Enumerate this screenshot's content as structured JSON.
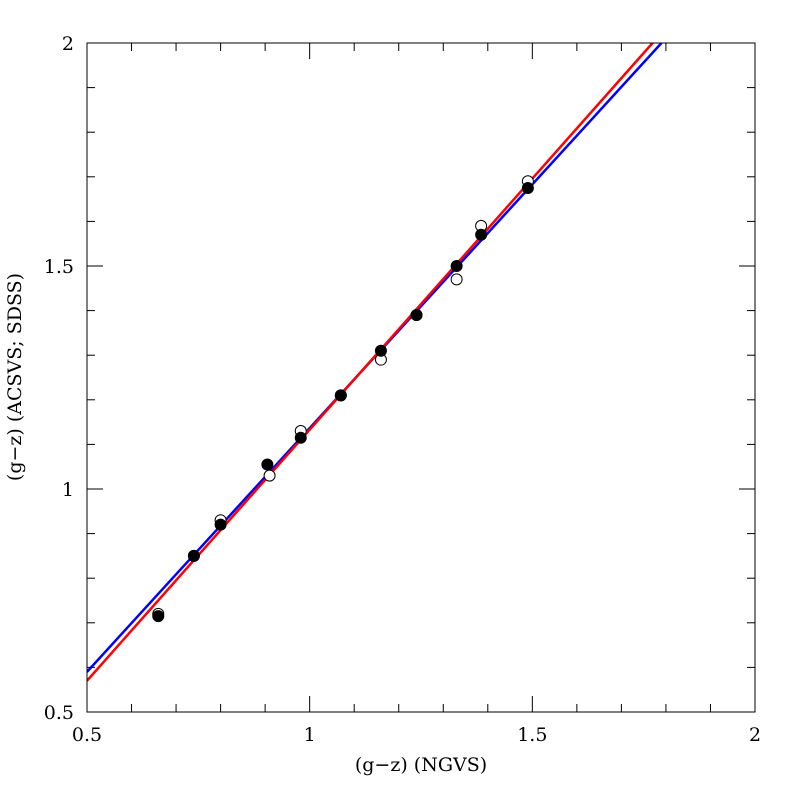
{
  "chart_data": {
    "type": "scatter",
    "xlabel": "(g−z)  (NGVS)",
    "ylabel": "(g−z)  (ACSVS; SDSS)",
    "xlim": [
      0.5,
      2.0
    ],
    "ylim": [
      0.5,
      2.0
    ],
    "x_ticks": [
      {
        "value": 0.5,
        "label": "0.5"
      },
      {
        "value": 1.0,
        "label": "1"
      },
      {
        "value": 1.5,
        "label": "1.5"
      },
      {
        "value": 2.0,
        "label": "2"
      }
    ],
    "y_ticks": [
      {
        "value": 0.5,
        "label": "0.5"
      },
      {
        "value": 1.0,
        "label": "1"
      },
      {
        "value": 1.5,
        "label": "1.5"
      },
      {
        "value": 2.0,
        "label": "2"
      }
    ],
    "minor_tick_step": 0.1,
    "grid": false,
    "series": [
      {
        "marker": "open-circle",
        "color": "#000000",
        "points": [
          [
            0.66,
            0.72
          ],
          [
            0.74,
            0.85
          ],
          [
            0.8,
            0.93
          ],
          [
            0.91,
            1.03
          ],
          [
            0.98,
            1.13
          ],
          [
            1.07,
            1.21
          ],
          [
            1.16,
            1.29
          ],
          [
            1.24,
            1.39
          ],
          [
            1.33,
            1.47
          ],
          [
            1.385,
            1.59
          ],
          [
            1.49,
            1.69
          ]
        ]
      },
      {
        "marker": "filled-circle",
        "color": "#000000",
        "points": [
          [
            0.66,
            0.715
          ],
          [
            0.74,
            0.85
          ],
          [
            0.8,
            0.92
          ],
          [
            0.905,
            1.055
          ],
          [
            0.98,
            1.115
          ],
          [
            1.07,
            1.21
          ],
          [
            1.16,
            1.31
          ],
          [
            1.24,
            1.39
          ],
          [
            1.33,
            1.5
          ],
          [
            1.385,
            1.57
          ],
          [
            1.49,
            1.675
          ]
        ]
      }
    ],
    "lines": [
      {
        "color": "#0000ff",
        "from": [
          0.5,
          0.59
        ],
        "to": [
          1.79,
          2.0
        ]
      },
      {
        "color": "#ff0000",
        "from": [
          0.5,
          0.57
        ],
        "to": [
          1.77,
          2.0
        ]
      }
    ]
  }
}
